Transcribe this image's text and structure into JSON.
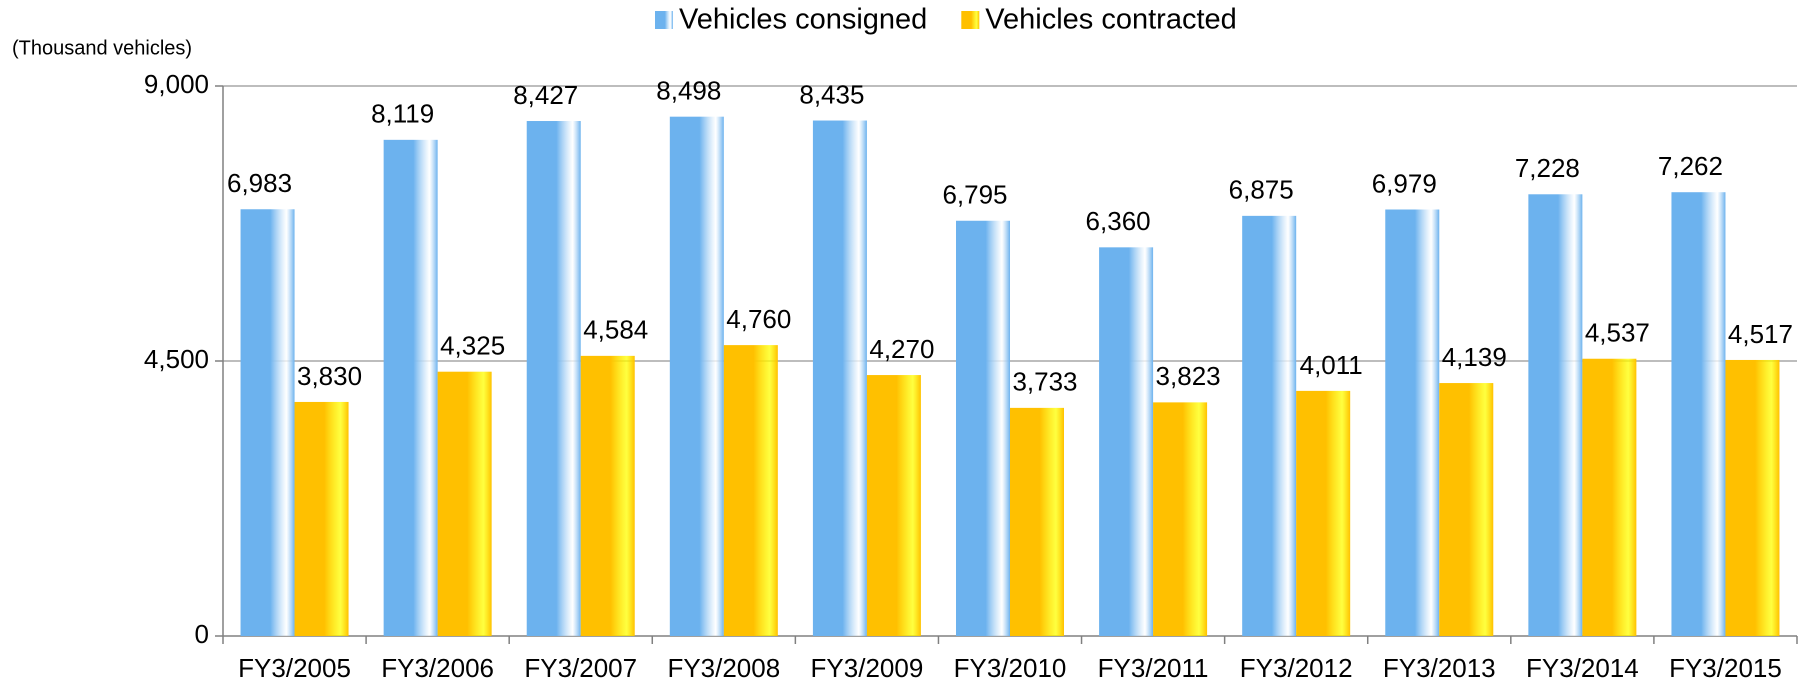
{
  "chart_data": {
    "type": "bar",
    "y_label": "(Thousand vehicles)",
    "categories": [
      "FY3/2005",
      "FY3/2006",
      "FY3/2007",
      "FY3/2008",
      "FY3/2009",
      "FY3/2010",
      "FY3/2011",
      "FY3/2012",
      "FY3/2013",
      "FY3/2014",
      "FY3/2015"
    ],
    "series": [
      {
        "name": "Vehicles consigned",
        "color": "#6cb2ee",
        "values": [
          6983,
          8119,
          8427,
          8498,
          8435,
          6795,
          6360,
          6875,
          6979,
          7228,
          7262
        ],
        "value_labels": [
          "6,983",
          "8,119",
          "8,427",
          "8,498",
          "8,435",
          "6,795",
          "6,360",
          "6,875",
          "6,979",
          "7,228",
          "7,262"
        ]
      },
      {
        "name": "Vehicles contracted",
        "color": "#ffc000",
        "values": [
          3830,
          4325,
          4584,
          4760,
          4270,
          3733,
          3823,
          4011,
          4139,
          4537,
          4517
        ],
        "value_labels": [
          "3,830",
          "4,325",
          "4,584",
          "4,760",
          "4,270",
          "3,733",
          "3,823",
          "4,011",
          "4,139",
          "4,537",
          "4,517"
        ]
      }
    ],
    "ylim": [
      0,
      9000
    ],
    "yticks": [
      0,
      {
        "value": 4500,
        "label": "4,500"
      },
      {
        "value": 9000,
        "label": "9,000"
      }
    ],
    "grid": true,
    "legend": "top"
  }
}
